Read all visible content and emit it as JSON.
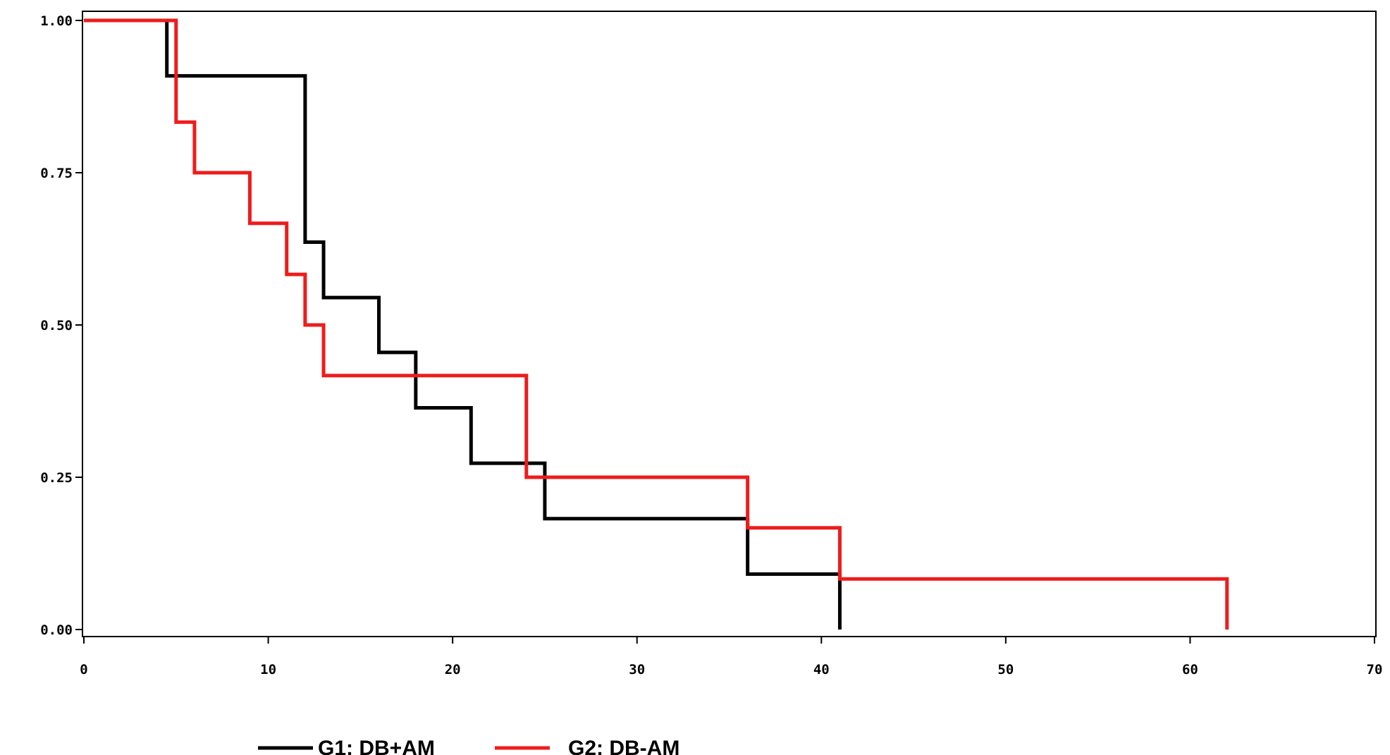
{
  "chart_data": {
    "type": "line",
    "step": true,
    "title": "",
    "xlabel": "",
    "ylabel": "",
    "xlim": [
      0,
      70
    ],
    "ylim": [
      0,
      1
    ],
    "x_ticks": [
      0,
      10,
      20,
      30,
      40,
      50,
      60,
      70
    ],
    "y_ticks": [
      0.0,
      0.25,
      0.5,
      0.75,
      1.0
    ],
    "x_tick_labels": [
      "0",
      "10",
      "20",
      "30",
      "40",
      "50",
      "60",
      "70"
    ],
    "y_tick_labels": [
      "0.00",
      "0.25",
      "0.50",
      "0.75",
      "1.00"
    ],
    "grid": false,
    "legend_position": "bottom",
    "series": [
      {
        "name": "G1: DB+AM",
        "color": "#000000",
        "x": [
          0,
          4.5,
          12,
          13,
          16,
          18,
          21,
          25,
          36,
          41,
          41
        ],
        "y": [
          1.0,
          0.909,
          0.636,
          0.545,
          0.455,
          0.364,
          0.273,
          0.182,
          0.091,
          0.091,
          0.0
        ]
      },
      {
        "name": "G2: DB-AM",
        "color": "#ee1c1c",
        "x": [
          0,
          5,
          6,
          9,
          11,
          12,
          13,
          24,
          36,
          41,
          62,
          62
        ],
        "y": [
          1.0,
          0.833,
          0.75,
          0.667,
          0.583,
          0.5,
          0.417,
          0.25,
          0.167,
          0.083,
          0.083,
          0.0
        ]
      }
    ]
  }
}
